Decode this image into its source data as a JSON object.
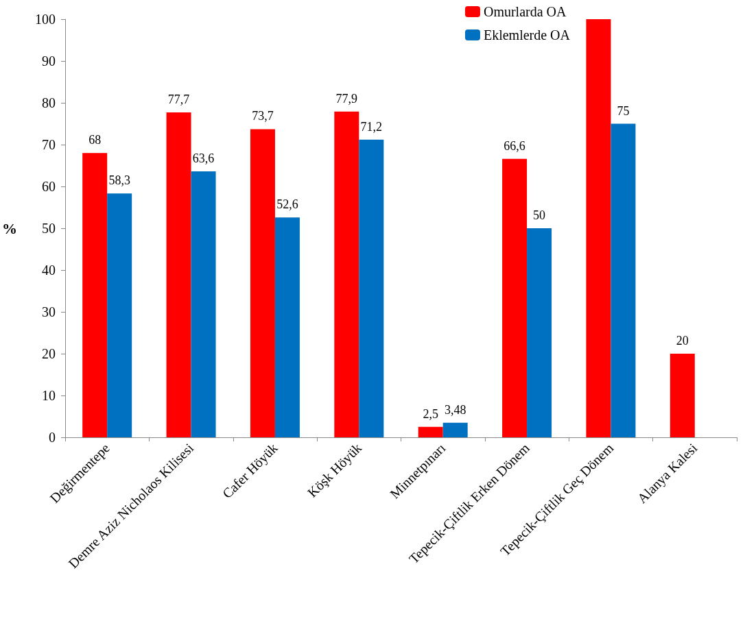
{
  "chart_data": {
    "type": "bar",
    "ylabel": "%",
    "categories": [
      "Değirmentepe",
      "Demre Aziz Nicholaos Kilisesi",
      "Cafer Höyük",
      "Köşk Höyük",
      "Minnetpınarı",
      "Tepecik-Çiftlik Erken Dönem",
      "Tepecik-Çiftlik Geç Dönem",
      "Alanya Kalesi"
    ],
    "series": [
      {
        "name": "Omurlarda OA",
        "color": "#ff0000",
        "values": [
          68,
          77.7,
          73.7,
          77.9,
          2.5,
          66.6,
          100,
          20
        ],
        "value_labels": [
          "68",
          "77,7",
          "73,7",
          "77,9",
          "2,5",
          "66,6",
          null,
          "20"
        ]
      },
      {
        "name": "Eklemlerde OA",
        "color": "#0070c0",
        "values": [
          58.3,
          63.6,
          52.6,
          71.2,
          3.48,
          50,
          75,
          null
        ],
        "value_labels": [
          "58,3",
          "63,6",
          "52,6",
          "71,2",
          "3,48",
          "50",
          "75",
          null
        ]
      }
    ],
    "ylim": [
      0,
      100
    ],
    "yticks": [
      0,
      10,
      20,
      30,
      40,
      50,
      60,
      70,
      80,
      90,
      100
    ],
    "grid": false,
    "legend": "top right"
  }
}
